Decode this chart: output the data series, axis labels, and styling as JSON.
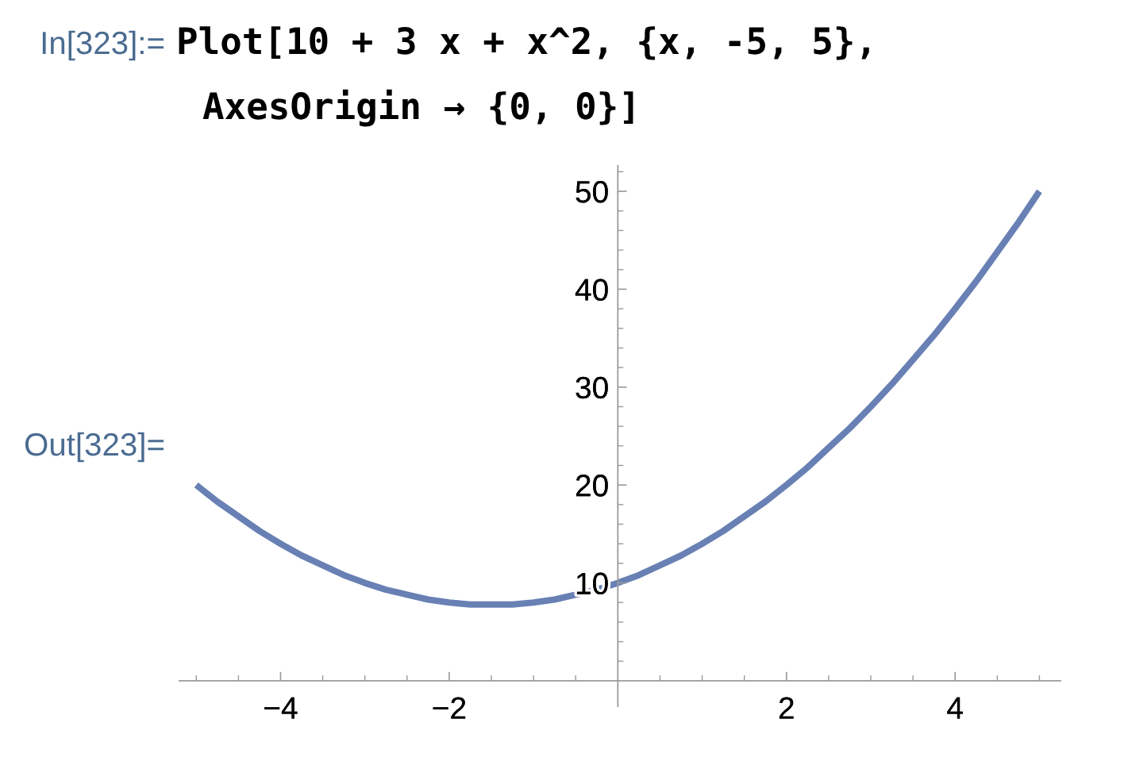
{
  "chart_data": {
    "type": "line",
    "annotations": [
      "In[323]:=",
      "Plot[10 + 3 x + x^2, {x, -5, 5},",
      "AxesOrigin → {0, 0}]",
      "Out[323]="
    ],
    "x": [
      -5,
      -4.75,
      -4.5,
      -4.25,
      -4,
      -3.75,
      -3.5,
      -3.25,
      -3,
      -2.75,
      -2.5,
      -2.25,
      -2,
      -1.75,
      -1.5,
      -1.25,
      -1,
      -0.75,
      -0.5,
      -0.25,
      0,
      0.25,
      0.5,
      0.75,
      1,
      1.25,
      1.5,
      1.75,
      2,
      2.25,
      2.5,
      2.75,
      3,
      3.25,
      3.5,
      3.75,
      4,
      4.25,
      4.5,
      4.75,
      5
    ],
    "series": [
      {
        "color": "#6880b4",
        "values": [
          20,
          18.3,
          16.8,
          15.3,
          14,
          12.8,
          11.8,
          10.8,
          10,
          9.3,
          8.8,
          8.3,
          8,
          7.8,
          7.8,
          7.8,
          8,
          8.3,
          8.8,
          9.3,
          10,
          10.8,
          11.8,
          12.8,
          14,
          15.3,
          16.8,
          18.3,
          20,
          21.8,
          23.8,
          25.8,
          28,
          30.3,
          32.8,
          35.3,
          38,
          40.8,
          43.8,
          46.8,
          50
        ]
      }
    ],
    "xlim": [
      -5.2,
      5.25
    ],
    "ylim": [
      -2.6,
      52.6
    ],
    "xticks": [
      {
        "value": -5,
        "label": null
      },
      {
        "value": -4.5,
        "label": null
      },
      {
        "value": -4,
        "label": "−4"
      },
      {
        "value": -3.5,
        "label": null
      },
      {
        "value": -3,
        "label": null
      },
      {
        "value": -2.5,
        "label": null
      },
      {
        "value": -2,
        "label": "−2"
      },
      {
        "value": -1.5,
        "label": null
      },
      {
        "value": -1,
        "label": null
      },
      {
        "value": -0.5,
        "label": null
      },
      {
        "value": 0.5,
        "label": null
      },
      {
        "value": 1,
        "label": null
      },
      {
        "value": 1.5,
        "label": null
      },
      2,
      {
        "value": 2.5,
        "label": null
      },
      {
        "value": 3,
        "label": null
      },
      {
        "value": 3.5,
        "label": null
      },
      4,
      {
        "value": 4.5,
        "label": null
      },
      {
        "value": 5,
        "label": null
      }
    ],
    "yticks": [
      {
        "value": 2,
        "label": null
      },
      {
        "value": 4,
        "label": null
      },
      {
        "value": 6,
        "label": null
      },
      {
        "value": 8,
        "label": null
      },
      10,
      {
        "value": 12,
        "label": null
      },
      {
        "value": 14,
        "label": null
      },
      {
        "value": 16,
        "label": null
      },
      {
        "value": 18,
        "label": null
      },
      20,
      {
        "value": 22,
        "label": null
      },
      {
        "value": 24,
        "label": null
      },
      {
        "value": 26,
        "label": null
      },
      {
        "value": 28,
        "label": null
      },
      30,
      {
        "value": 32,
        "label": null
      },
      {
        "value": 34,
        "label": null
      },
      {
        "value": 36,
        "label": null
      },
      {
        "value": 38,
        "label": null
      },
      40,
      {
        "value": 42,
        "label": null
      },
      {
        "value": 44,
        "label": null
      },
      {
        "value": 46,
        "label": null
      },
      {
        "value": 48,
        "label": null
      },
      50,
      {
        "value": 52,
        "label": null
      }
    ],
    "marker": "none",
    "line_style": "solid"
  }
}
